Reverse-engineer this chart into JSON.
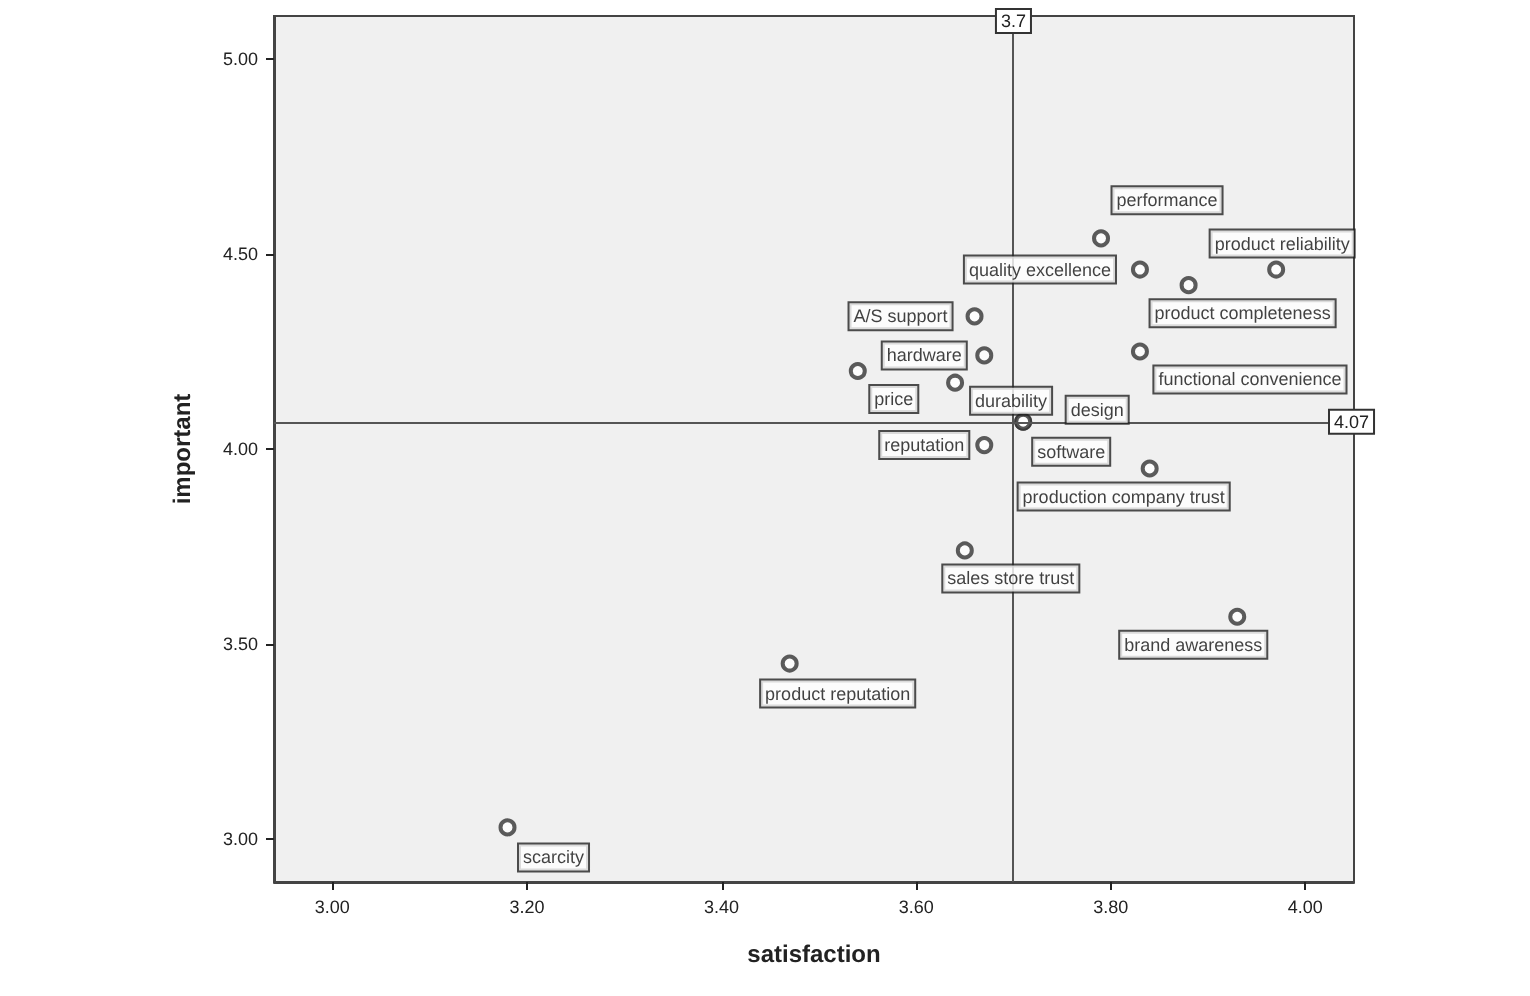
{
  "chart_data": {
    "type": "scatter",
    "xlabel": "satisfaction",
    "ylabel": "important",
    "x": [
      3.79,
      3.83,
      3.97,
      3.88,
      3.66,
      3.67,
      3.54,
      3.64,
      3.83,
      3.67,
      3.71,
      3.71,
      3.84,
      3.65,
      3.93,
      3.47,
      3.18
    ],
    "values": [
      4.54,
      4.46,
      4.46,
      4.42,
      4.34,
      4.24,
      4.2,
      4.17,
      4.25,
      4.01,
      4.07,
      4.07,
      3.95,
      3.74,
      3.57,
      3.45,
      3.03
    ],
    "color": "#333333",
    "marker": "circle",
    "xlim": [
      2.94,
      4.05
    ],
    "xticks": [
      {
        "value": 3.0,
        "label": "3.00"
      },
      {
        "value": 3.2,
        "label": "3.20"
      },
      {
        "value": 3.4,
        "label": "3.40"
      },
      {
        "value": 3.6,
        "label": "3.60"
      },
      {
        "value": 3.8,
        "label": "3.80"
      },
      {
        "value": 4.0,
        "label": "4.00"
      }
    ],
    "ylim": [
      2.89,
      5.11
    ],
    "yticks": [
      {
        "value": 3.0,
        "label": "3.00"
      },
      {
        "value": 3.5,
        "label": "3.50"
      },
      {
        "value": 4.0,
        "label": "4.00"
      },
      {
        "value": 4.5,
        "label": "4.50"
      },
      {
        "value": 5.0,
        "label": "5.00"
      }
    ],
    "grid": false,
    "ref_lines": [
      {
        "axis": "x",
        "value": 3.7,
        "label": "3.7"
      },
      {
        "axis": "y",
        "value": 4.07,
        "label": "4.07"
      }
    ],
    "annotations": [
      {
        "text": "performance",
        "x": 3.79,
        "y": 4.54
      },
      {
        "text": "quality excellence",
        "x": 3.83,
        "y": 4.46
      },
      {
        "text": "product reliability",
        "x": 3.97,
        "y": 4.46
      },
      {
        "text": "product completeness",
        "x": 3.88,
        "y": 4.42
      },
      {
        "text": "A/S support",
        "x": 3.66,
        "y": 4.34
      },
      {
        "text": "hardware",
        "x": 3.67,
        "y": 4.24
      },
      {
        "text": "price",
        "x": 3.54,
        "y": 4.2
      },
      {
        "text": "durability",
        "x": 3.64,
        "y": 4.17
      },
      {
        "text": "functional convenience",
        "x": 3.83,
        "y": 4.25
      },
      {
        "text": "reputation",
        "x": 3.67,
        "y": 4.01
      },
      {
        "text": "software",
        "x": 3.71,
        "y": 4.07
      },
      {
        "text": "design",
        "x": 3.71,
        "y": 4.07
      },
      {
        "text": "production company trust",
        "x": 3.84,
        "y": 3.95
      },
      {
        "text": "sales store trust",
        "x": 3.65,
        "y": 3.74
      },
      {
        "text": "brand awareness",
        "x": 3.93,
        "y": 3.57
      },
      {
        "text": "product reputation",
        "x": 3.47,
        "y": 3.45
      },
      {
        "text": "scarcity",
        "x": 3.18,
        "y": 3.03
      }
    ]
  }
}
